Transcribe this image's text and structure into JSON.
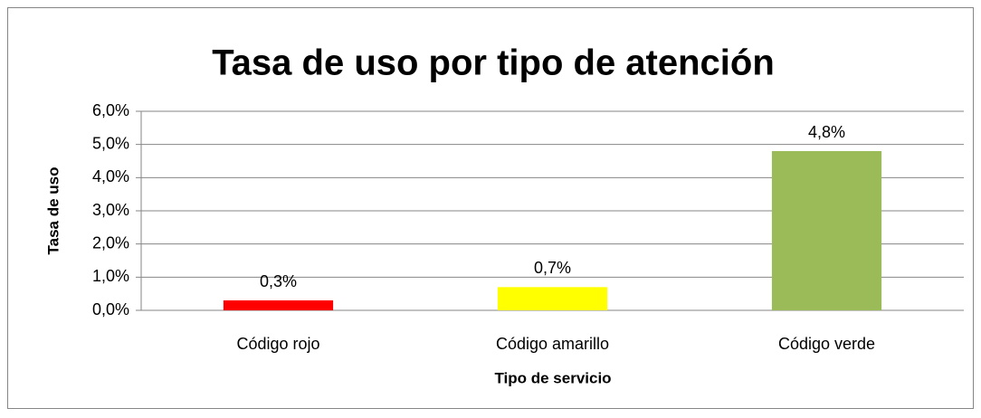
{
  "chart_data": {
    "type": "bar",
    "title": "Tasa de uso por tipo de atención",
    "x_label": "Tipo de servicio",
    "y_label": "Tasa de uso",
    "categories": [
      "Código rojo",
      "Código amarillo",
      "Código verde"
    ],
    "values": [
      0.3,
      0.7,
      4.8
    ],
    "value_labels": [
      "0,3%",
      "0,7%",
      "4,8%"
    ],
    "colors": [
      "#ff0000",
      "#ffff00",
      "#9bbb59"
    ],
    "ylim": [
      0,
      6
    ],
    "yticks": [
      {
        "value": 0,
        "label": "0,0%"
      },
      {
        "value": 1,
        "label": "1,0%"
      },
      {
        "value": 2,
        "label": "2,0%"
      },
      {
        "value": 3,
        "label": "3,0%"
      },
      {
        "value": 4,
        "label": "4,0%"
      },
      {
        "value": 5,
        "label": "5,0%"
      },
      {
        "value": 6,
        "label": "6,0%"
      }
    ],
    "grid": true
  }
}
